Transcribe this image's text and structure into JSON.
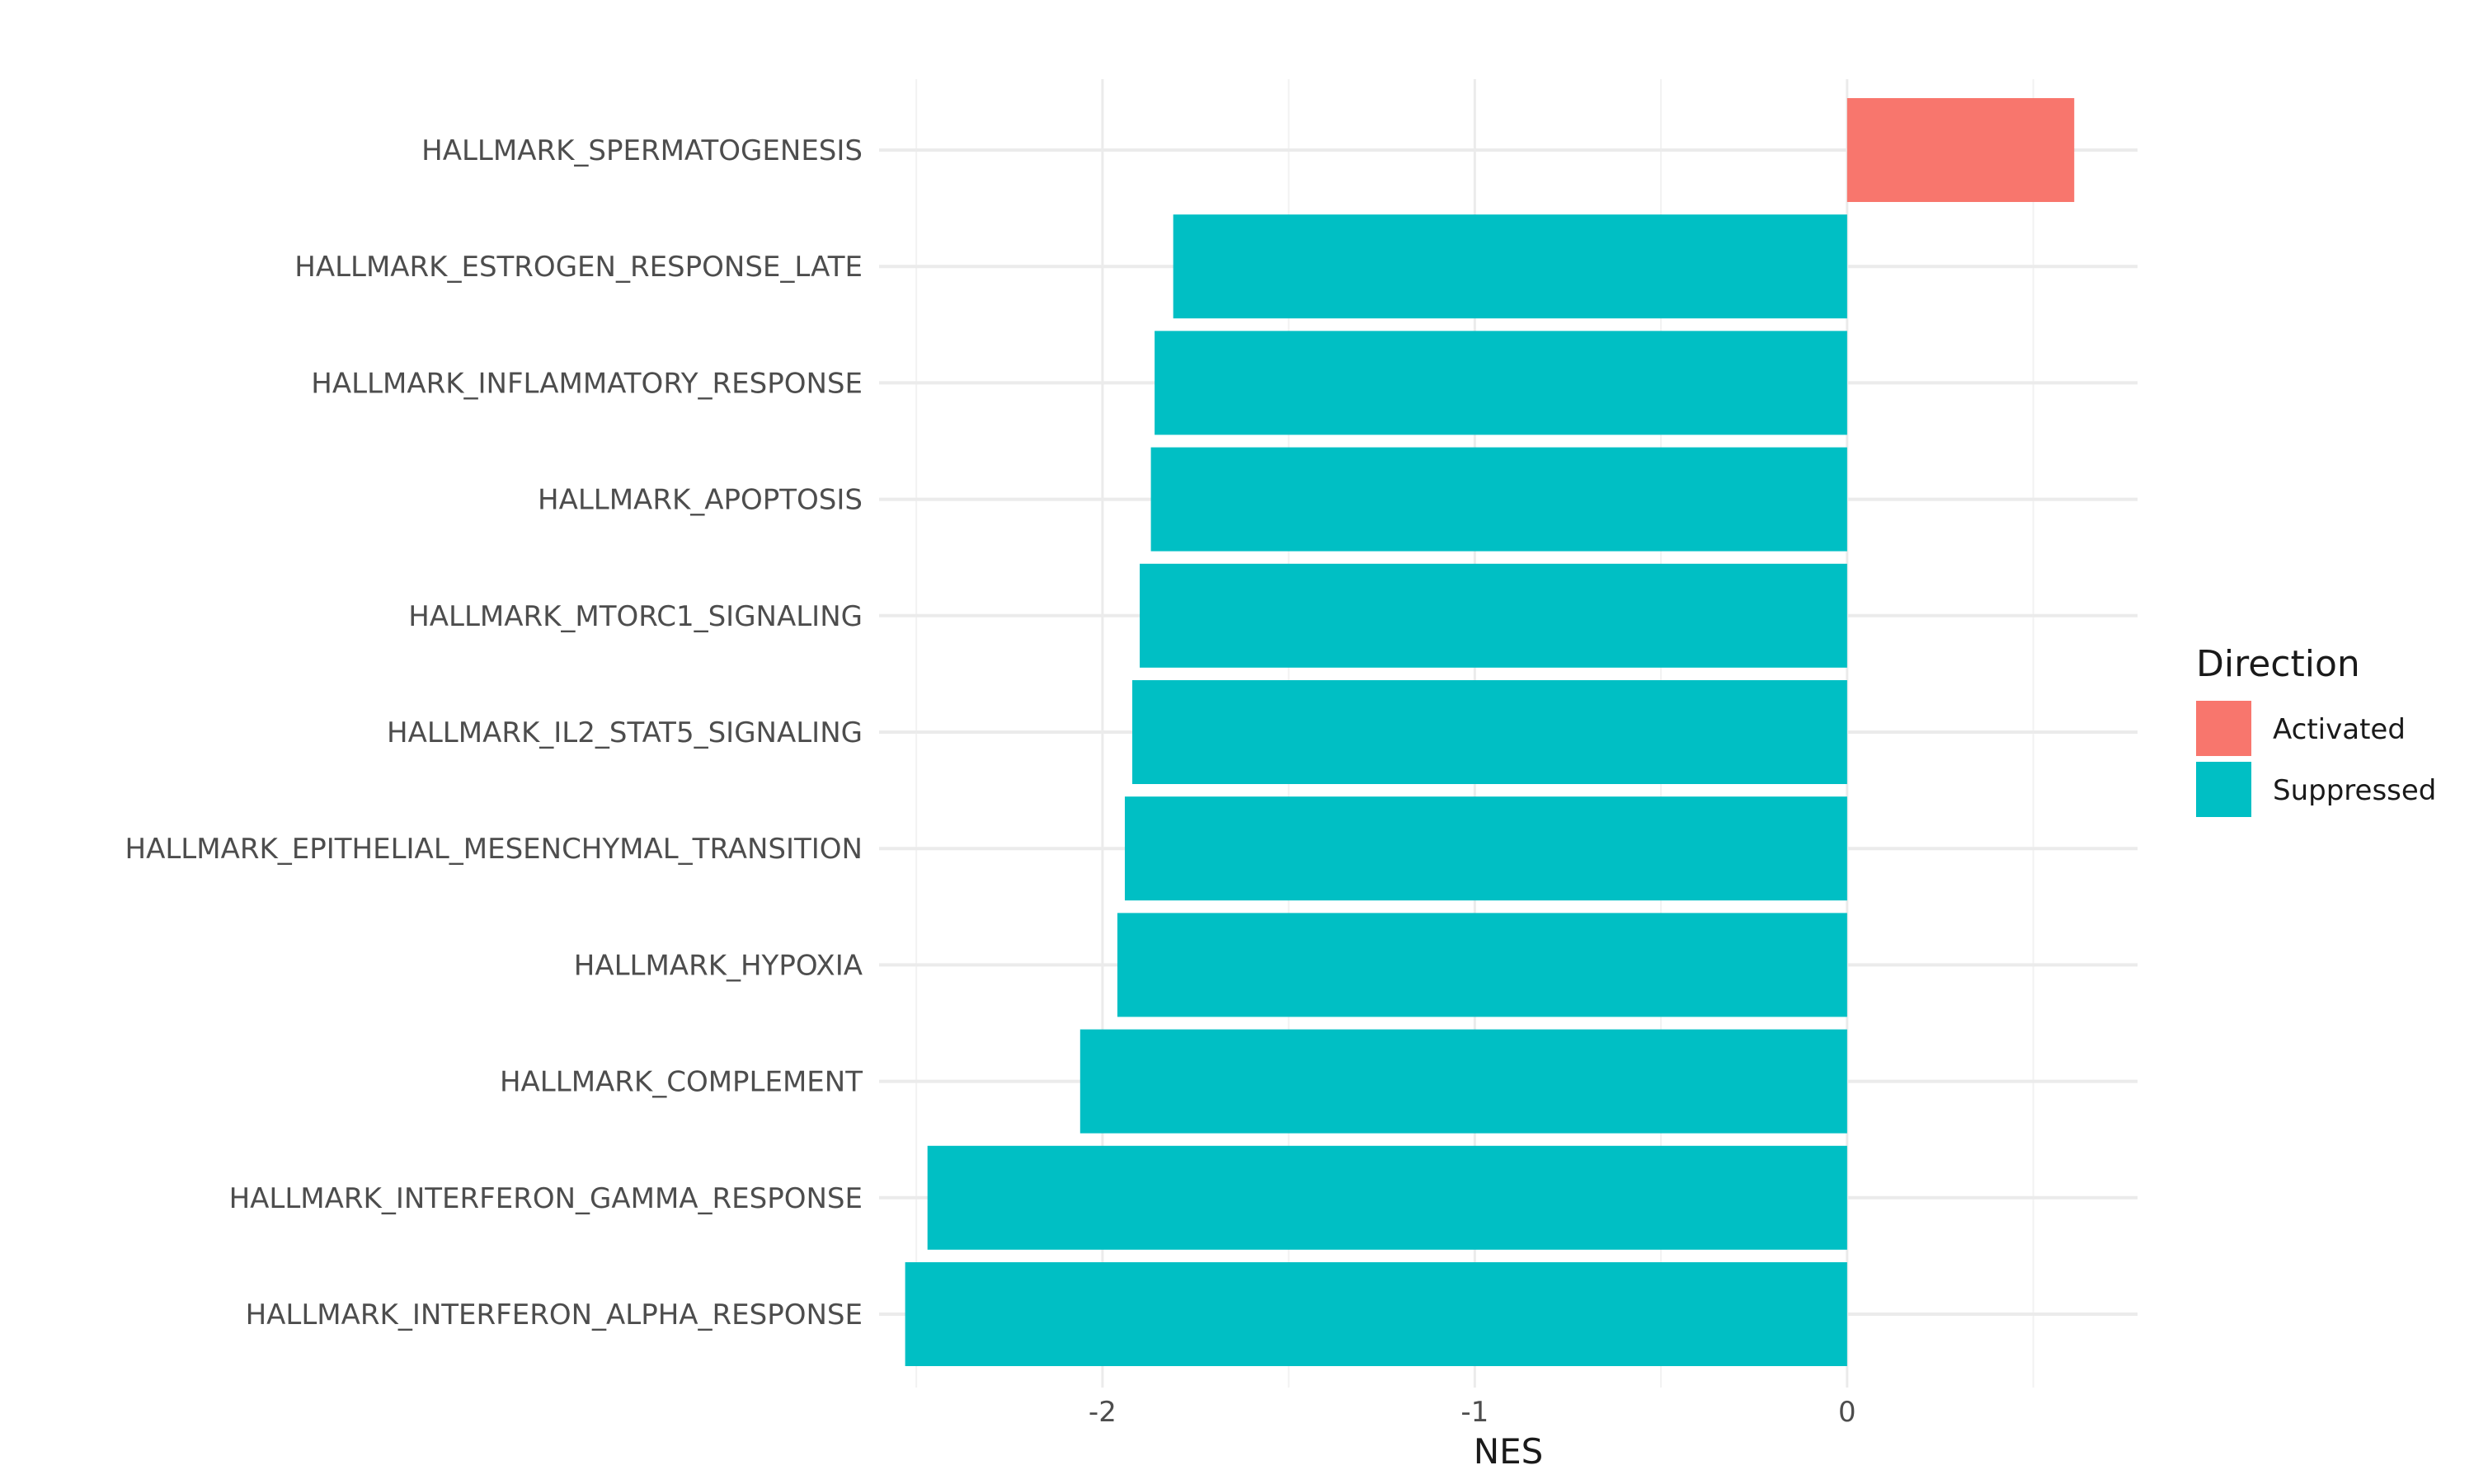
{
  "chart_data": {
    "type": "bar",
    "orientation": "horizontal",
    "title": "",
    "xlabel": "NES",
    "ylabel": "",
    "xlim": [
      -2.6,
      0.78
    ],
    "x_ticks": [
      {
        "value": -2,
        "label": "-2"
      },
      {
        "value": -1,
        "label": "-1"
      },
      {
        "value": 0,
        "label": "0"
      }
    ],
    "x_minor_grid": [
      -2.5,
      -1.5,
      -0.5,
      0.5
    ],
    "grid": true,
    "categories": [
      "HALLMARK_SPERMATOGENESIS",
      "HALLMARK_ESTROGEN_RESPONSE_LATE",
      "HALLMARK_INFLAMMATORY_RESPONSE",
      "HALLMARK_APOPTOSIS",
      "HALLMARK_MTORC1_SIGNALING",
      "HALLMARK_IL2_STAT5_SIGNALING",
      "HALLMARK_EPITHELIAL_MESENCHYMAL_TRANSITION",
      "HALLMARK_HYPOXIA",
      "HALLMARK_COMPLEMENT",
      "HALLMARK_INTERFERON_GAMMA_RESPONSE",
      "HALLMARK_INTERFERON_ALPHA_RESPONSE"
    ],
    "values": [
      0.61,
      -1.81,
      -1.86,
      -1.87,
      -1.9,
      -1.92,
      -1.94,
      -1.96,
      -2.06,
      -2.47,
      -2.53
    ],
    "directions": [
      "Activated",
      "Suppressed",
      "Suppressed",
      "Suppressed",
      "Suppressed",
      "Suppressed",
      "Suppressed",
      "Suppressed",
      "Suppressed",
      "Suppressed",
      "Suppressed"
    ],
    "legend": {
      "title": "Direction",
      "position": "right",
      "entries": [
        {
          "label": "Activated",
          "color": "#F8766D"
        },
        {
          "label": "Suppressed",
          "color": "#00BFC4"
        }
      ]
    }
  },
  "colors": {
    "activated": "#F8766D",
    "suppressed": "#00BFC4",
    "grid_major": "#EBEBEB",
    "grid_minor": "#F2F2F2"
  }
}
